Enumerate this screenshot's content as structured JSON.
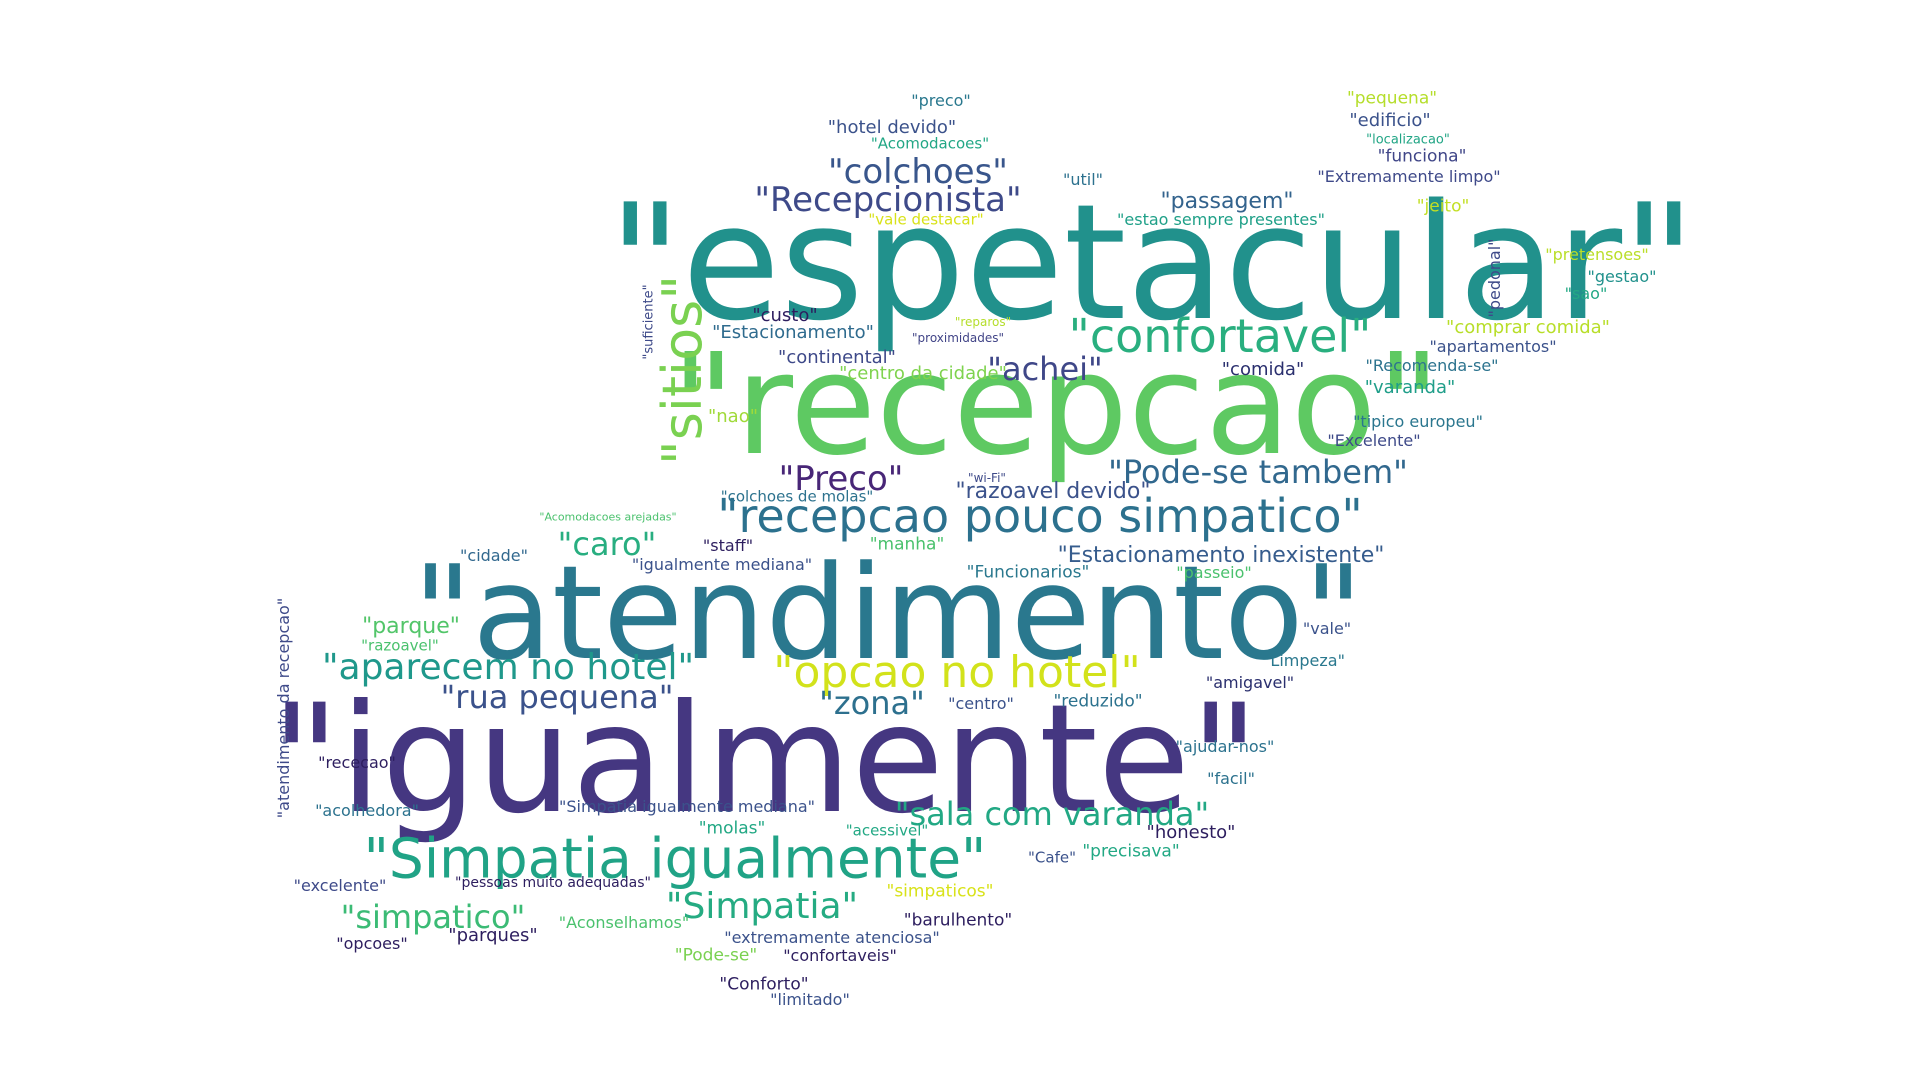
{
  "words": [
    {
      "text": "\"espetacular\"",
      "color": "#21918c"
    },
    {
      "text": "\"recepcao\"",
      "color": "#5ec962"
    },
    {
      "text": "\"atendimento\"",
      "color": "#2a788e"
    },
    {
      "text": "\"igualmente\"",
      "color": "#453781"
    },
    {
      "text": "\"Simpatia igualmente\"",
      "color": "#20a386"
    },
    {
      "text": "\"recepcao pouco simpatico\"",
      "color": "#2c718e"
    },
    {
      "text": "\"sitios\"",
      "color": "#7ad151"
    },
    {
      "text": "\"confortavel\"",
      "color": "#29af7f"
    },
    {
      "text": "\"opcao no hotel\"",
      "color": "#d2e21b"
    },
    {
      "text": "\"aparecem no hotel\"",
      "color": "#1f988b"
    },
    {
      "text": "\"Recepcionista\"",
      "color": "#3e4a89"
    },
    {
      "text": "\"colchoes\"",
      "color": "#39568c"
    },
    {
      "text": "\"Pode-se tambem\"",
      "color": "#31688e"
    },
    {
      "text": "\"Preco\"",
      "color": "#482677"
    },
    {
      "text": "\"sala com varanda\"",
      "color": "#22a884"
    },
    {
      "text": "\"rua pequena\"",
      "color": "#3b528b"
    },
    {
      "text": "\"zona\"",
      "color": "#2d708e"
    },
    {
      "text": "\"Simpatia\"",
      "color": "#25ab82"
    },
    {
      "text": "\"simpatico\"",
      "color": "#3bbb75"
    },
    {
      "text": "\"achei\"",
      "color": "#3f4788"
    },
    {
      "text": "\"caro\"",
      "color": "#28ae80"
    },
    {
      "text": "\"Estacionamento inexistente\"",
      "color": "#365c8d"
    },
    {
      "text": "\"passagem\"",
      "color": "#33638d"
    },
    {
      "text": "\"razoavel devido\"",
      "color": "#3b528b"
    },
    {
      "text": "\"parque\"",
      "color": "#52c569"
    },
    {
      "text": "\"comprar comida\"",
      "color": "#b8de29"
    },
    {
      "text": "\"Estacionamento\"",
      "color": "#2f6b8e"
    },
    {
      "text": "\"custo\"",
      "color": "#2d1e5f"
    },
    {
      "text": "\"continental\"",
      "color": "#3e4989"
    },
    {
      "text": "\"comida\"",
      "color": "#2a2f6e"
    },
    {
      "text": "\"centro da cidade\"",
      "color": "#7fd34e"
    },
    {
      "text": "\"Recomenda-se\"",
      "color": "#2c738e"
    },
    {
      "text": "\"varanda\"",
      "color": "#1f9e89"
    },
    {
      "text": "\"tipico europeu\"",
      "color": "#2a768e"
    },
    {
      "text": "\"Excelente\"",
      "color": "#3e4a89"
    },
    {
      "text": "\"nao\"",
      "color": "#a0da39"
    },
    {
      "text": "\"preco\"",
      "color": "#2a788e"
    },
    {
      "text": "\"hotel devido\"",
      "color": "#3b528b"
    },
    {
      "text": "\"Acomodacoes\"",
      "color": "#22a785"
    },
    {
      "text": "\"util\"",
      "color": "#2c718e"
    },
    {
      "text": "\"vale destacar\"",
      "color": "#d8e219"
    },
    {
      "text": "\"estao sempre presentes\"",
      "color": "#1fa088"
    },
    {
      "text": "\"pequena\"",
      "color": "#b5de2b"
    },
    {
      "text": "\"edificio\"",
      "color": "#3b528b"
    },
    {
      "text": "\"localizacao\"",
      "color": "#21a585"
    },
    {
      "text": "\"funciona\"",
      "color": "#404688"
    },
    {
      "text": "\"Extremamente limpo\"",
      "color": "#3e4989"
    },
    {
      "text": "\"jeito\"",
      "color": "#c2df23"
    },
    {
      "text": "\"pretensoes\"",
      "color": "#bade28"
    },
    {
      "text": "\"gestao\"",
      "color": "#21918c"
    },
    {
      "text": "\"sao\"",
      "color": "#22a884"
    },
    {
      "text": "\"pedonal\"",
      "color": "#3e4a89"
    },
    {
      "text": "\"suficiente\"",
      "color": "#3e4a89"
    },
    {
      "text": "\"reparos\"",
      "color": "#b5de2b"
    },
    {
      "text": "\"proximidades\"",
      "color": "#414487"
    },
    {
      "text": "\"apartamentos\"",
      "color": "#3b528b"
    },
    {
      "text": "\"wi-Fi\"",
      "color": "#3e4a89"
    },
    {
      "text": "\"colchoes de molas\"",
      "color": "#2c728e"
    },
    {
      "text": "\"Acomodacoes arejadas\"",
      "color": "#4ac16d"
    },
    {
      "text": "\"staff\"",
      "color": "#2d1e5f"
    },
    {
      "text": "\"manha\"",
      "color": "#4ac16d"
    },
    {
      "text": "\"cidade\"",
      "color": "#31688e"
    },
    {
      "text": "\"igualmente mediana\"",
      "color": "#3b528b"
    },
    {
      "text": "\"Funcionarios\"",
      "color": "#2a788e"
    },
    {
      "text": "\"passeio\"",
      "color": "#4ac16d"
    },
    {
      "text": "\"vale\"",
      "color": "#3b528b"
    },
    {
      "text": "\"razoavel\"",
      "color": "#4ac16d"
    },
    {
      "text": "\"atendimento da recepcao\"",
      "color": "#3e4a89"
    },
    {
      "text": "\"Limpeza\"",
      "color": "#2a788e"
    },
    {
      "text": "\"amigavel\"",
      "color": "#2a2f6e"
    },
    {
      "text": "\"centro\"",
      "color": "#3b528b"
    },
    {
      "text": "\"reduzido\"",
      "color": "#2c728e"
    },
    {
      "text": "\"ajudar-nos\"",
      "color": "#2c728e"
    },
    {
      "text": "\"rececao\"",
      "color": "#2d1e5f"
    },
    {
      "text": "\"facil\"",
      "color": "#2c728e"
    },
    {
      "text": "\"Simpatia igualmente mediana\"",
      "color": "#3b528b"
    },
    {
      "text": "\"acolhedora\"",
      "color": "#2c728e"
    },
    {
      "text": "\"molas\"",
      "color": "#22a884"
    },
    {
      "text": "\"acessivel\"",
      "color": "#22a884"
    },
    {
      "text": "\"honesto\"",
      "color": "#2d1e5f"
    },
    {
      "text": "\"Cafe\"",
      "color": "#3b528b"
    },
    {
      "text": "\"precisava\"",
      "color": "#22a884"
    },
    {
      "text": "\"excelente\"",
      "color": "#3e4a89"
    },
    {
      "text": "\"pessoas muito adequadas\"",
      "color": "#2d1e5f"
    },
    {
      "text": "\"simpaticos\"",
      "color": "#d8e219"
    },
    {
      "text": "\"Aconselhamos\"",
      "color": "#4ac16d"
    },
    {
      "text": "\"barulhento\"",
      "color": "#2d1e5f"
    },
    {
      "text": "\"opcoes\"",
      "color": "#2d1e5f"
    },
    {
      "text": "\"parques\"",
      "color": "#2d1e5f"
    },
    {
      "text": "\"extremamente atenciosa\"",
      "color": "#3b528b"
    },
    {
      "text": "\"Pode-se\"",
      "color": "#7ad151"
    },
    {
      "text": "\"confortaveis\"",
      "color": "#2d1e5f"
    },
    {
      "text": "\"Conforto\"",
      "color": "#2d1e5f"
    },
    {
      "text": "\"limitado\"",
      "color": "#3b528b"
    }
  ]
}
